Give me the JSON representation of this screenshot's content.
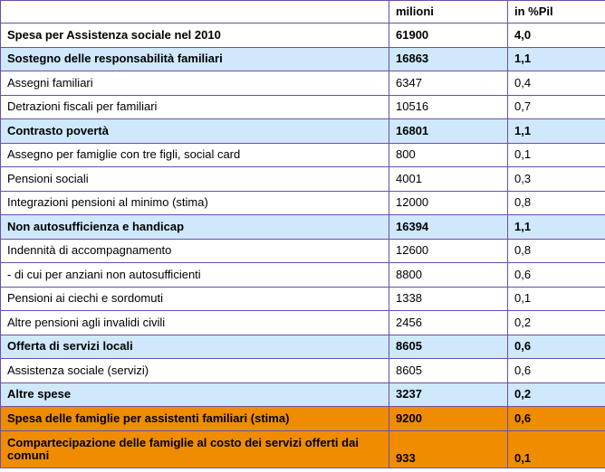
{
  "header": {
    "col1": "",
    "col2": "milioni",
    "col3": "in %Pil"
  },
  "rows": [
    {
      "label": "Spesa per Assistenza sociale nel 2010",
      "milioni": "61900",
      "pil": "4,0",
      "kind": "total"
    },
    {
      "label": "Sostegno delle responsabilità familiari",
      "milioni": "16863",
      "pil": "1,1",
      "kind": "section"
    },
    {
      "label": "Assegni familiari",
      "milioni": "6347",
      "pil": "0,4",
      "kind": "item"
    },
    {
      "label": "Detrazioni fiscali per familiari",
      "milioni": "10516",
      "pil": "0,7",
      "kind": "item"
    },
    {
      "label": "Contrasto povertà",
      "milioni": "16801",
      "pil": "1,1",
      "kind": "section"
    },
    {
      "label": "Assegno per famiglie con tre figli, social card",
      "milioni": "800",
      "pil": "0,1",
      "kind": "item"
    },
    {
      "label": "Pensioni sociali",
      "milioni": "4001",
      "pil": "0,3",
      "kind": "item"
    },
    {
      "label": "Integrazioni pensioni al minimo (stima)",
      "milioni": "12000",
      "pil": "0,8",
      "kind": "item"
    },
    {
      "label": "Non autosufficienza e handicap",
      "milioni": "16394",
      "pil": "1,1",
      "kind": "section"
    },
    {
      "label": "Indennità di accompagnamento",
      "milioni": "12600",
      "pil": "0,8",
      "kind": "item"
    },
    {
      "label": "- di cui per anziani non autosufficienti",
      "milioni": "8800",
      "pil": "0,6",
      "kind": "item"
    },
    {
      "label": "Pensioni ai ciechi e sordomuti",
      "milioni": "1338",
      "pil": "0,1",
      "kind": "item"
    },
    {
      "label": "Altre pensioni agli invalidi civili",
      "milioni": "2456",
      "pil": "0,2",
      "kind": "item"
    },
    {
      "label": "Offerta di servizi locali",
      "milioni": "8605",
      "pil": "0,6",
      "kind": "section"
    },
    {
      "label": "Assistenza sociale (servizi)",
      "milioni": "8605",
      "pil": "0,6",
      "kind": "item"
    },
    {
      "label": "Altre spese",
      "milioni": "3237",
      "pil": "0,2",
      "kind": "section"
    },
    {
      "label": "Spesa delle famiglie per assistenti familiari (stima)",
      "milioni": "9200",
      "pil": "0,6",
      "kind": "highlight"
    },
    {
      "label": "Compartecipazione delle famiglie al costo dei servizi offerti dai comuni",
      "milioni": "933",
      "pil": "0,1",
      "kind": "highlight-tall"
    }
  ],
  "colors": {
    "border": "#6a4fa8",
    "section_bg": "#cfe8fb",
    "highlight_bg": "#f08c00"
  }
}
